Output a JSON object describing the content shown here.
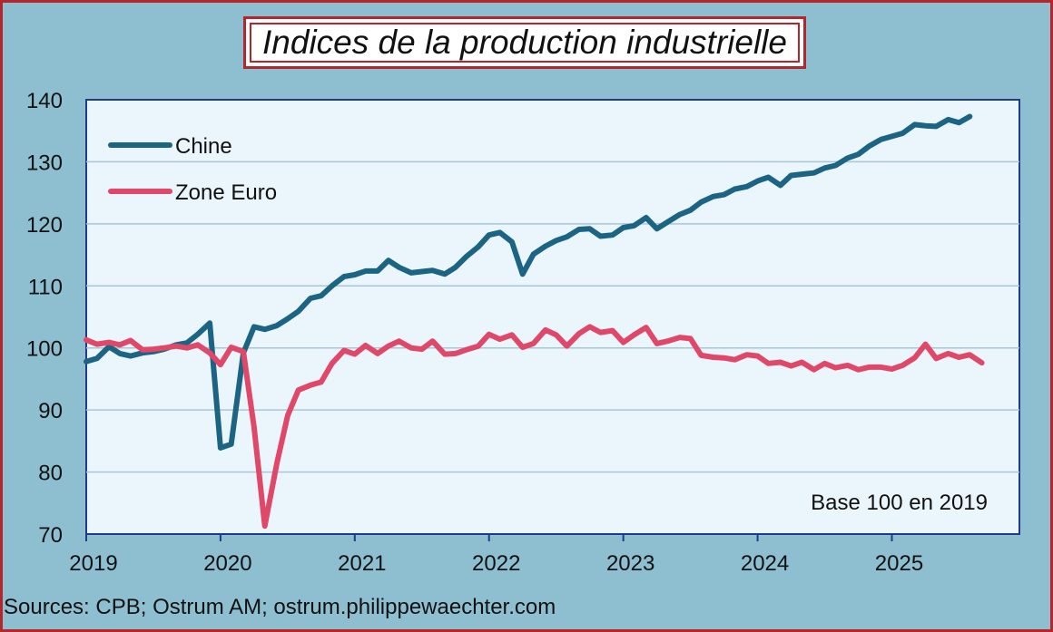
{
  "title": "Indices de la production industrielle",
  "footer": "Sources: CPB; Ostrum AM; ostrum.philippewaechter.com",
  "colors": {
    "background": "#8DBFD0",
    "plot": "#EAF6FB",
    "frame": "#B5262C",
    "grid": "#A9C6D6",
    "axis": "#1F3C8C",
    "chine": "#1B6483",
    "zone_euro": "#E0486A"
  },
  "chart_data": {
    "type": "line",
    "title": "Indices de la production industrielle",
    "note": "Base 100 en 2019",
    "xlabel": "",
    "ylabel": "",
    "ylim": [
      70,
      140
    ],
    "yticks": [
      70,
      80,
      90,
      100,
      110,
      120,
      130,
      140
    ],
    "xlim": [
      2019.0,
      2025.95
    ],
    "xticks": [
      {
        "label": "2019",
        "x": 2019.0
      },
      {
        "label": "2020",
        "x": 2020.0
      },
      {
        "label": "2021",
        "x": 2021.0
      },
      {
        "label": "2022",
        "x": 2022.0
      },
      {
        "label": "2023",
        "x": 2023.0
      },
      {
        "label": "2024",
        "x": 2024.0
      },
      {
        "label": "2025",
        "x": 2025.0
      }
    ],
    "grid": true,
    "legend_position": "top-left",
    "series": [
      {
        "name": "Chine",
        "color_key": "chine",
        "points": [
          [
            2019.0,
            97.8
          ],
          [
            2019.08,
            98.3
          ],
          [
            2019.17,
            100.2
          ],
          [
            2019.25,
            99.1
          ],
          [
            2019.33,
            98.7
          ],
          [
            2019.42,
            99.2
          ],
          [
            2019.5,
            99.4
          ],
          [
            2019.58,
            99.8
          ],
          [
            2019.67,
            100.5
          ],
          [
            2019.75,
            100.8
          ],
          [
            2019.83,
            102.2
          ],
          [
            2019.92,
            104.0
          ],
          [
            2020.0,
            83.9
          ],
          [
            2020.08,
            84.5
          ],
          [
            2020.17,
            99.2
          ],
          [
            2020.25,
            103.4
          ],
          [
            2020.33,
            103.0
          ],
          [
            2020.42,
            103.6
          ],
          [
            2020.5,
            104.7
          ],
          [
            2020.58,
            105.9
          ],
          [
            2020.67,
            108.0
          ],
          [
            2020.75,
            108.4
          ],
          [
            2020.83,
            110.0
          ],
          [
            2020.92,
            111.5
          ],
          [
            2021.0,
            111.8
          ],
          [
            2021.08,
            112.4
          ],
          [
            2021.17,
            112.4
          ],
          [
            2021.25,
            114.1
          ],
          [
            2021.33,
            113.0
          ],
          [
            2021.42,
            112.1
          ],
          [
            2021.5,
            112.3
          ],
          [
            2021.58,
            112.5
          ],
          [
            2021.67,
            111.9
          ],
          [
            2021.75,
            113.0
          ],
          [
            2021.83,
            114.7
          ],
          [
            2021.92,
            116.3
          ],
          [
            2022.0,
            118.2
          ],
          [
            2022.08,
            118.6
          ],
          [
            2022.17,
            117.1
          ],
          [
            2022.25,
            111.9
          ],
          [
            2022.33,
            115.1
          ],
          [
            2022.42,
            116.4
          ],
          [
            2022.5,
            117.3
          ],
          [
            2022.58,
            117.9
          ],
          [
            2022.67,
            119.1
          ],
          [
            2022.75,
            119.2
          ],
          [
            2022.83,
            118.0
          ],
          [
            2022.92,
            118.2
          ],
          [
            2023.0,
            119.4
          ],
          [
            2023.08,
            119.7
          ],
          [
            2023.17,
            121.0
          ],
          [
            2023.25,
            119.2
          ],
          [
            2023.33,
            120.3
          ],
          [
            2023.42,
            121.5
          ],
          [
            2023.5,
            122.2
          ],
          [
            2023.58,
            123.5
          ],
          [
            2023.67,
            124.4
          ],
          [
            2023.75,
            124.7
          ],
          [
            2023.83,
            125.6
          ],
          [
            2023.92,
            126.0
          ],
          [
            2024.0,
            126.9
          ],
          [
            2024.08,
            127.5
          ],
          [
            2024.17,
            126.2
          ],
          [
            2024.25,
            127.8
          ],
          [
            2024.33,
            128.0
          ],
          [
            2024.42,
            128.2
          ],
          [
            2024.5,
            129.0
          ],
          [
            2024.58,
            129.4
          ],
          [
            2024.67,
            130.6
          ],
          [
            2024.75,
            131.2
          ],
          [
            2024.83,
            132.5
          ],
          [
            2024.92,
            133.6
          ],
          [
            2025.0,
            134.1
          ],
          [
            2025.08,
            134.6
          ],
          [
            2025.17,
            136.0
          ],
          [
            2025.25,
            135.8
          ],
          [
            2025.33,
            135.7
          ],
          [
            2025.42,
            136.8
          ],
          [
            2025.5,
            136.3
          ],
          [
            2025.58,
            137.3
          ]
        ]
      },
      {
        "name": "Zone Euro",
        "color_key": "zone_euro",
        "points": [
          [
            2019.0,
            101.3
          ],
          [
            2019.08,
            100.6
          ],
          [
            2019.17,
            100.9
          ],
          [
            2019.25,
            100.5
          ],
          [
            2019.33,
            101.2
          ],
          [
            2019.42,
            99.7
          ],
          [
            2019.5,
            99.8
          ],
          [
            2019.58,
            100.0
          ],
          [
            2019.67,
            100.3
          ],
          [
            2019.75,
            100.0
          ],
          [
            2019.83,
            100.5
          ],
          [
            2019.92,
            99.2
          ],
          [
            2020.0,
            97.3
          ],
          [
            2020.08,
            100.1
          ],
          [
            2020.17,
            99.4
          ],
          [
            2020.25,
            87.2
          ],
          [
            2020.33,
            71.3
          ],
          [
            2020.42,
            81.4
          ],
          [
            2020.5,
            89.1
          ],
          [
            2020.58,
            93.2
          ],
          [
            2020.67,
            94.0
          ],
          [
            2020.75,
            94.5
          ],
          [
            2020.83,
            97.5
          ],
          [
            2020.92,
            99.6
          ],
          [
            2021.0,
            99.0
          ],
          [
            2021.08,
            100.4
          ],
          [
            2021.17,
            99.1
          ],
          [
            2021.25,
            100.3
          ],
          [
            2021.33,
            101.1
          ],
          [
            2021.42,
            100.0
          ],
          [
            2021.5,
            99.8
          ],
          [
            2021.58,
            101.1
          ],
          [
            2021.67,
            99.0
          ],
          [
            2021.75,
            99.1
          ],
          [
            2021.83,
            99.7
          ],
          [
            2021.92,
            100.3
          ],
          [
            2022.0,
            102.2
          ],
          [
            2022.08,
            101.4
          ],
          [
            2022.17,
            102.1
          ],
          [
            2022.25,
            100.1
          ],
          [
            2022.33,
            100.7
          ],
          [
            2022.42,
            102.9
          ],
          [
            2022.5,
            102.1
          ],
          [
            2022.58,
            100.3
          ],
          [
            2022.67,
            102.3
          ],
          [
            2022.75,
            103.4
          ],
          [
            2022.83,
            102.5
          ],
          [
            2022.92,
            102.8
          ],
          [
            2023.0,
            100.9
          ],
          [
            2023.08,
            102.1
          ],
          [
            2023.17,
            103.3
          ],
          [
            2023.25,
            100.7
          ],
          [
            2023.33,
            101.1
          ],
          [
            2023.42,
            101.7
          ],
          [
            2023.5,
            101.5
          ],
          [
            2023.58,
            98.8
          ],
          [
            2023.67,
            98.5
          ],
          [
            2023.75,
            98.4
          ],
          [
            2023.83,
            98.1
          ],
          [
            2023.92,
            98.9
          ],
          [
            2024.0,
            98.7
          ],
          [
            2024.08,
            97.5
          ],
          [
            2024.17,
            97.7
          ],
          [
            2024.25,
            97.1
          ],
          [
            2024.33,
            97.7
          ],
          [
            2024.42,
            96.5
          ],
          [
            2024.5,
            97.5
          ],
          [
            2024.58,
            96.8
          ],
          [
            2024.67,
            97.2
          ],
          [
            2024.75,
            96.5
          ],
          [
            2024.83,
            96.9
          ],
          [
            2024.92,
            96.9
          ],
          [
            2025.0,
            96.6
          ],
          [
            2025.08,
            97.2
          ],
          [
            2025.17,
            98.4
          ],
          [
            2025.25,
            100.6
          ],
          [
            2025.33,
            98.3
          ],
          [
            2025.42,
            99.1
          ],
          [
            2025.5,
            98.5
          ],
          [
            2025.58,
            98.9
          ],
          [
            2025.67,
            97.6
          ]
        ]
      }
    ]
  }
}
